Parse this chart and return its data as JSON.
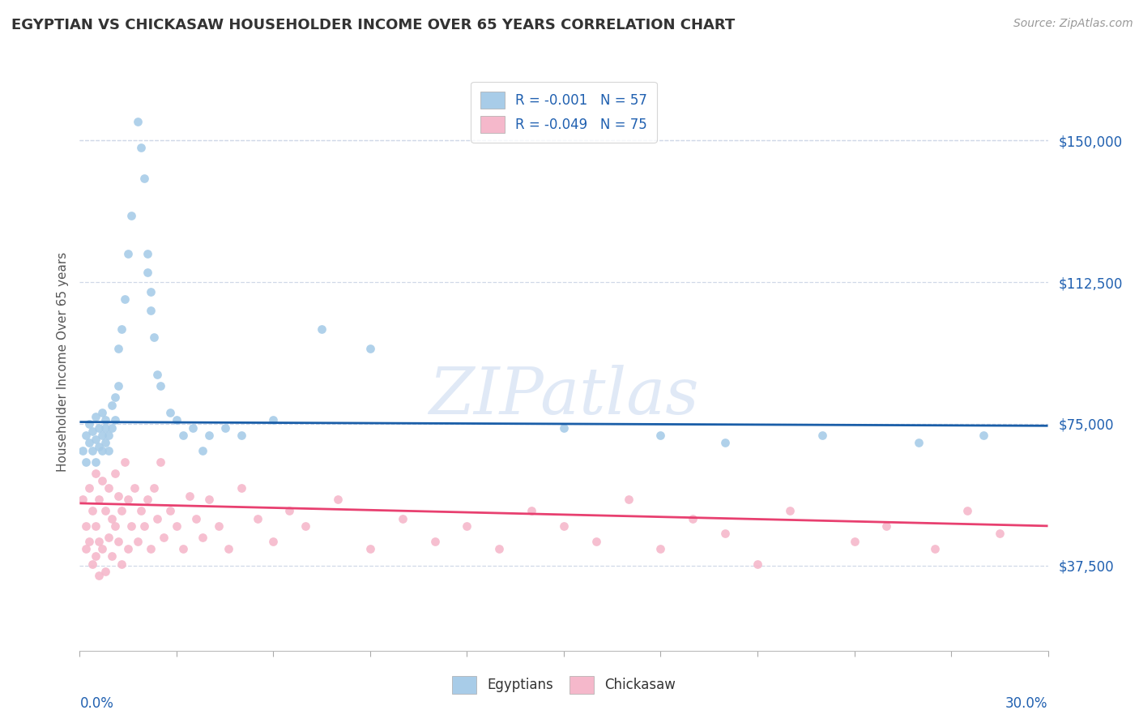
{
  "title": "EGYPTIAN VS CHICKASAW HOUSEHOLDER INCOME OVER 65 YEARS CORRELATION CHART",
  "source": "Source: ZipAtlas.com",
  "ylabel": "Householder Income Over 65 years",
  "xlim": [
    0.0,
    0.3
  ],
  "ylim": [
    15000,
    168000
  ],
  "yticks": [
    37500,
    75000,
    112500,
    150000
  ],
  "ytick_labels": [
    "$37,500",
    "$75,000",
    "$112,500",
    "$150,000"
  ],
  "watermark": "ZIPatlas",
  "legend_r_egyptian": "R = -0.001",
  "legend_n_egyptian": "N = 57",
  "legend_r_chickasaw": "R = -0.049",
  "legend_n_chickasaw": "N = 75",
  "blue_scatter": "#a8cce8",
  "pink_scatter": "#f5b8cb",
  "blue_line": "#1a5ea8",
  "pink_line": "#e84070",
  "label_color": "#2060b0",
  "grid_color": "#d0d8e8",
  "title_color": "#333333",
  "source_color": "#999999",
  "egyptian_x": [
    0.001,
    0.002,
    0.002,
    0.003,
    0.003,
    0.004,
    0.004,
    0.005,
    0.005,
    0.005,
    0.006,
    0.006,
    0.007,
    0.007,
    0.007,
    0.008,
    0.008,
    0.008,
    0.009,
    0.009,
    0.01,
    0.01,
    0.011,
    0.011,
    0.012,
    0.012,
    0.013,
    0.014,
    0.015,
    0.016,
    0.018,
    0.019,
    0.02,
    0.021,
    0.021,
    0.022,
    0.022,
    0.023,
    0.024,
    0.025,
    0.028,
    0.03,
    0.032,
    0.035,
    0.038,
    0.04,
    0.045,
    0.05,
    0.06,
    0.075,
    0.09,
    0.15,
    0.18,
    0.2,
    0.23,
    0.26,
    0.28
  ],
  "egyptian_y": [
    68000,
    72000,
    65000,
    70000,
    75000,
    68000,
    73000,
    71000,
    77000,
    65000,
    74000,
    69000,
    72000,
    78000,
    68000,
    74000,
    70000,
    76000,
    68000,
    72000,
    80000,
    74000,
    76000,
    82000,
    85000,
    95000,
    100000,
    108000,
    120000,
    130000,
    155000,
    148000,
    140000,
    120000,
    115000,
    110000,
    105000,
    98000,
    88000,
    85000,
    78000,
    76000,
    72000,
    74000,
    68000,
    72000,
    74000,
    72000,
    76000,
    100000,
    95000,
    74000,
    72000,
    70000,
    72000,
    70000,
    72000
  ],
  "chickasaw_x": [
    0.001,
    0.002,
    0.002,
    0.003,
    0.003,
    0.004,
    0.004,
    0.005,
    0.005,
    0.005,
    0.006,
    0.006,
    0.006,
    0.007,
    0.007,
    0.008,
    0.008,
    0.009,
    0.009,
    0.01,
    0.01,
    0.011,
    0.011,
    0.012,
    0.012,
    0.013,
    0.013,
    0.014,
    0.015,
    0.015,
    0.016,
    0.017,
    0.018,
    0.019,
    0.02,
    0.021,
    0.022,
    0.023,
    0.024,
    0.025,
    0.026,
    0.028,
    0.03,
    0.032,
    0.034,
    0.036,
    0.038,
    0.04,
    0.043,
    0.046,
    0.05,
    0.055,
    0.06,
    0.065,
    0.07,
    0.08,
    0.09,
    0.1,
    0.11,
    0.12,
    0.13,
    0.14,
    0.15,
    0.16,
    0.17,
    0.18,
    0.19,
    0.2,
    0.21,
    0.22,
    0.24,
    0.25,
    0.265,
    0.275,
    0.285
  ],
  "chickasaw_y": [
    55000,
    48000,
    42000,
    58000,
    44000,
    52000,
    38000,
    62000,
    48000,
    40000,
    55000,
    44000,
    35000,
    60000,
    42000,
    52000,
    36000,
    58000,
    45000,
    50000,
    40000,
    62000,
    48000,
    44000,
    56000,
    52000,
    38000,
    65000,
    55000,
    42000,
    48000,
    58000,
    44000,
    52000,
    48000,
    55000,
    42000,
    58000,
    50000,
    65000,
    45000,
    52000,
    48000,
    42000,
    56000,
    50000,
    45000,
    55000,
    48000,
    42000,
    58000,
    50000,
    44000,
    52000,
    48000,
    55000,
    42000,
    50000,
    44000,
    48000,
    42000,
    52000,
    48000,
    44000,
    55000,
    42000,
    50000,
    46000,
    38000,
    52000,
    44000,
    48000,
    42000,
    52000,
    46000
  ]
}
